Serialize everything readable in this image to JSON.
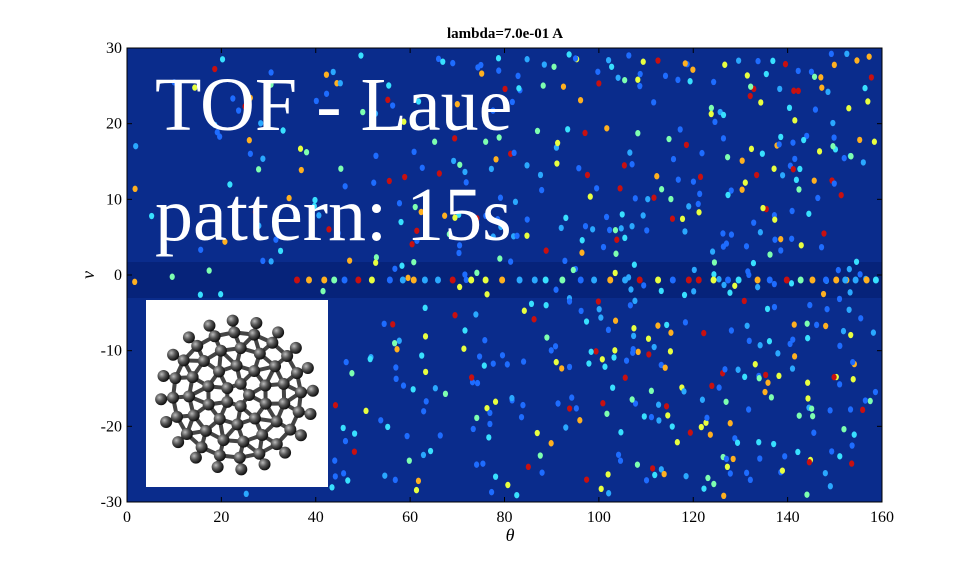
{
  "chart_data": {
    "type": "heatmap",
    "title": "lambda=7.0e-01 A",
    "xlabel": "θ",
    "ylabel": "ν",
    "xlim": [
      0,
      160
    ],
    "ylim": [
      -30,
      30
    ],
    "xticks": [
      0,
      20,
      40,
      60,
      80,
      100,
      120,
      140,
      160
    ],
    "yticks": [
      -30,
      -20,
      -10,
      0,
      10,
      20,
      30
    ],
    "annotations": [
      "TOF - Laue",
      "pattern: 15s"
    ]
  }
}
